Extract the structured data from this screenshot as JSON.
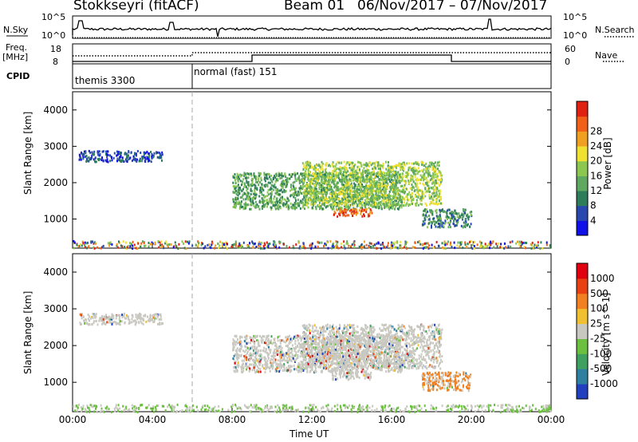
{
  "header": {
    "station": "Stokkseyri (fitACF)",
    "beam": "Beam 01",
    "date_range": "06/Nov/2017 – 07/Nov/2017"
  },
  "top_panels": {
    "nsky_label": "N.Sky",
    "nsky_ticks": [
      "10^5",
      "10^0"
    ],
    "nsearch_label": "N.Search",
    "nsearch_ticks": [
      "10^5",
      "10^0"
    ],
    "freq_label": "Freq.",
    "freq_unit": "[MHz]",
    "freq_ticks": [
      "18",
      "8"
    ],
    "nave_label": "Nave",
    "nave_ticks": [
      "60",
      "0"
    ],
    "cpid_label": "CPID",
    "cpid_segments": [
      {
        "label": "themis 3300",
        "start_hour": 0
      },
      {
        "label": "normal (fast) 151",
        "start_hour": 6
      }
    ]
  },
  "chart_data": [
    {
      "type": "heatmap",
      "name": "power",
      "ylabel": "Slant Range [km]",
      "yticks": [
        1000,
        2000,
        3000,
        4000
      ],
      "ylim": [
        200,
        4500
      ],
      "xlim": [
        0,
        24
      ],
      "colorbar_label": "Power [dB]",
      "colorbar_ticks": [
        4,
        8,
        12,
        16,
        20,
        24,
        28
      ],
      "colorbar_colors": [
        "#1010e8",
        "#2848b0",
        "#2e7d5a",
        "#5fa860",
        "#8cc850",
        "#f0e030",
        "#f0a020",
        "#f06018",
        "#e02010"
      ],
      "scatter_regions": [
        {
          "t0": 8.0,
          "t1": 16.5,
          "r0": 1300,
          "r1": 2300,
          "level": 12
        },
        {
          "t0": 11.5,
          "t1": 18.5,
          "r0": 1400,
          "r1": 2600,
          "level": 16
        },
        {
          "t0": 13.0,
          "t1": 15.0,
          "r0": 1100,
          "r1": 1300,
          "level": 27
        },
        {
          "t0": 17.5,
          "t1": 20.0,
          "r0": 800,
          "r1": 1300,
          "level": 10
        },
        {
          "t0": 0.3,
          "t1": 4.5,
          "r0": 2600,
          "r1": 2900,
          "level": 6
        }
      ]
    },
    {
      "type": "heatmap",
      "name": "velocity",
      "ylabel": "Slant Range [km]",
      "yticks": [
        1000,
        2000,
        3000,
        4000
      ],
      "ylim": [
        200,
        4500
      ],
      "xlim": [
        0,
        24
      ],
      "xticks": [
        "00:00",
        "04:00",
        "08:00",
        "12:00",
        "16:00",
        "20:00",
        "00:00"
      ],
      "xlabel": "Time UT",
      "colorbar_label": "Velocity [m s^-1]",
      "colorbar_ticks": [
        1000,
        500,
        100,
        25,
        -25,
        -100,
        -500,
        -1000
      ],
      "colorbar_colors": [
        "#2040c0",
        "#2f7fa0",
        "#40a060",
        "#6cc040",
        "#c8c8c0",
        "#f0c030",
        "#f08020",
        "#e84010",
        "#e00010"
      ]
    }
  ]
}
